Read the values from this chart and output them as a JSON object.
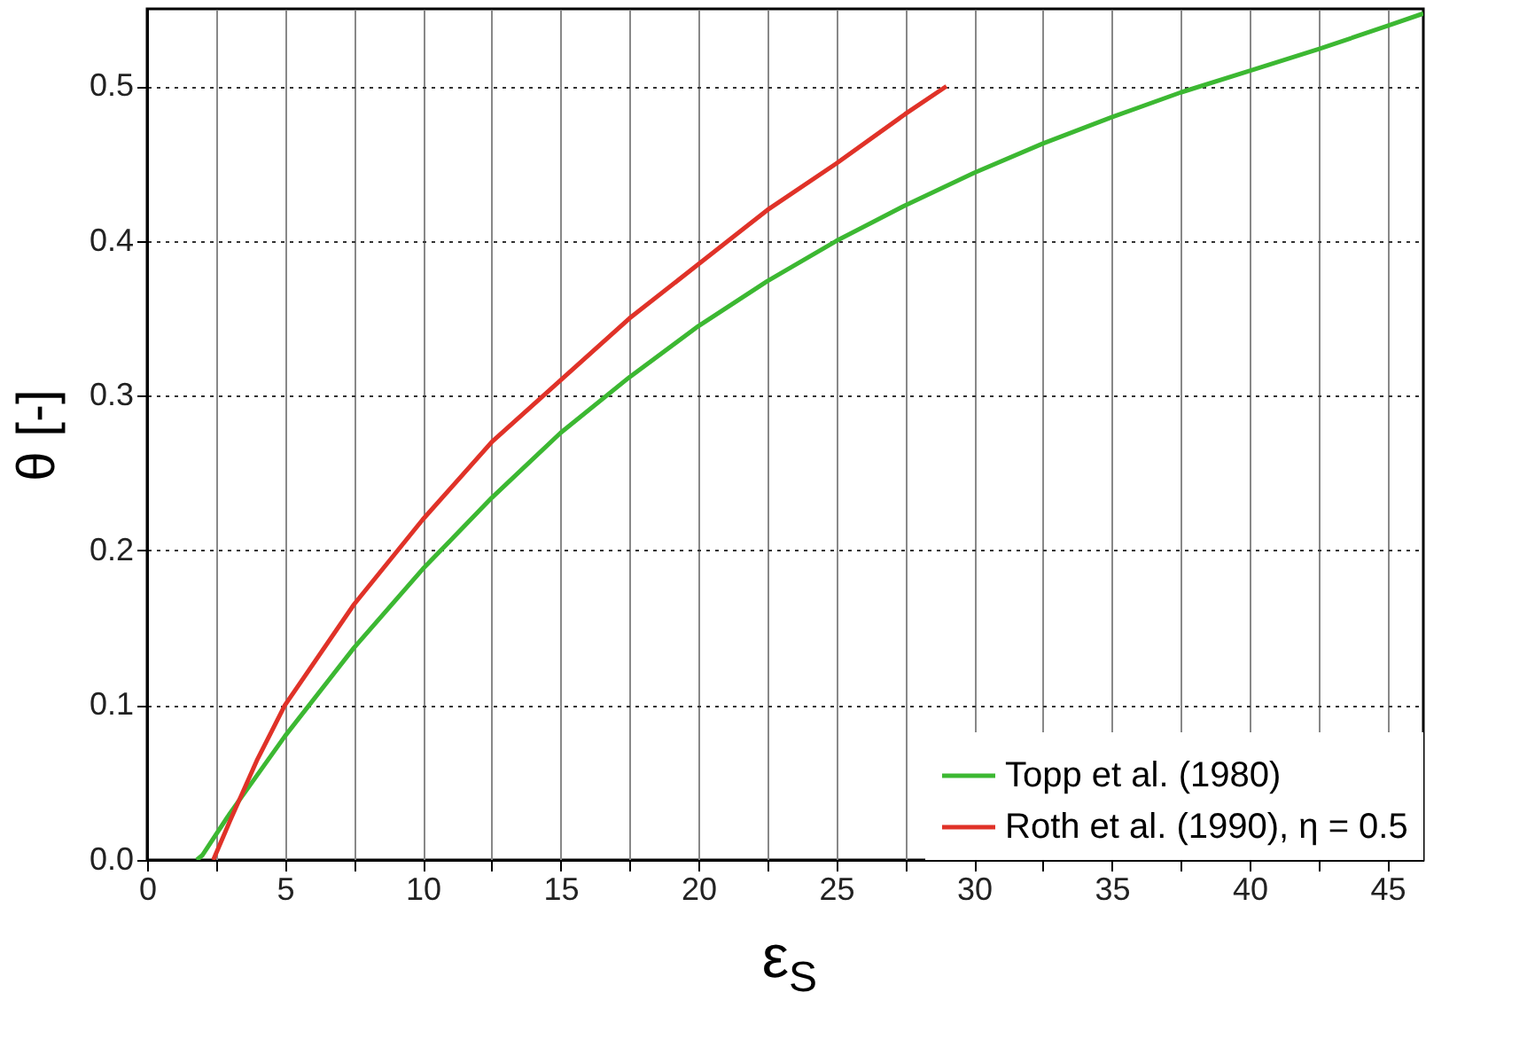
{
  "chart_data": {
    "type": "line",
    "xlabel": "ε$_{S}$",
    "ylabel": "θ [-]",
    "series": [
      {
        "name": "Topp et al. (1980)",
        "color": "#3cb832",
        "x": [
          1.8,
          2,
          3,
          5,
          7.5,
          10,
          12.5,
          15,
          17.5,
          20,
          22.5,
          25,
          27.5,
          30,
          32.5,
          35,
          37.5,
          40,
          42.5,
          45,
          46.3
        ],
        "values": [
          0,
          0.003,
          0.03,
          0.08,
          0.137,
          0.188,
          0.234,
          0.276,
          0.312,
          0.345,
          0.374,
          0.4,
          0.423,
          0.444,
          0.463,
          0.48,
          0.496,
          0.51,
          0.524,
          0.539,
          0.547
        ]
      },
      {
        "name": "Roth et al. (1990), η = 0.5",
        "color": "#e03228",
        "x": [
          2.4,
          3,
          4,
          5,
          7.5,
          10,
          12.5,
          15,
          17.5,
          20,
          22.5,
          25,
          27.5,
          29
        ],
        "values": [
          0,
          0.025,
          0.065,
          0.1,
          0.165,
          0.22,
          0.27,
          0.31,
          0.35,
          0.385,
          0.42,
          0.45,
          0.482,
          0.5
        ]
      }
    ],
    "xlim": [
      0,
      46.3
    ],
    "ylim": [
      0,
      0.55
    ],
    "xticks": [
      0,
      {
        "value": 2.5,
        "label": null
      },
      5,
      {
        "value": 7.5,
        "label": null
      },
      10,
      {
        "value": 12.5,
        "label": null
      },
      15,
      {
        "value": 17.5,
        "label": null
      },
      20,
      {
        "value": 22.5,
        "label": null
      },
      25,
      {
        "value": 27.5,
        "label": null
      },
      30,
      {
        "value": 32.5,
        "label": null
      },
      35,
      {
        "value": 37.5,
        "label": null
      },
      40,
      {
        "value": 42.5,
        "label": null
      },
      45
    ],
    "yticks": [
      {
        "value": 0,
        "label": "0.0"
      },
      0.1,
      0.2,
      0.3,
      0.4,
      0.5
    ],
    "grid": true,
    "legend": "bottom right",
    "line_style": "solid",
    "marker": "none"
  }
}
